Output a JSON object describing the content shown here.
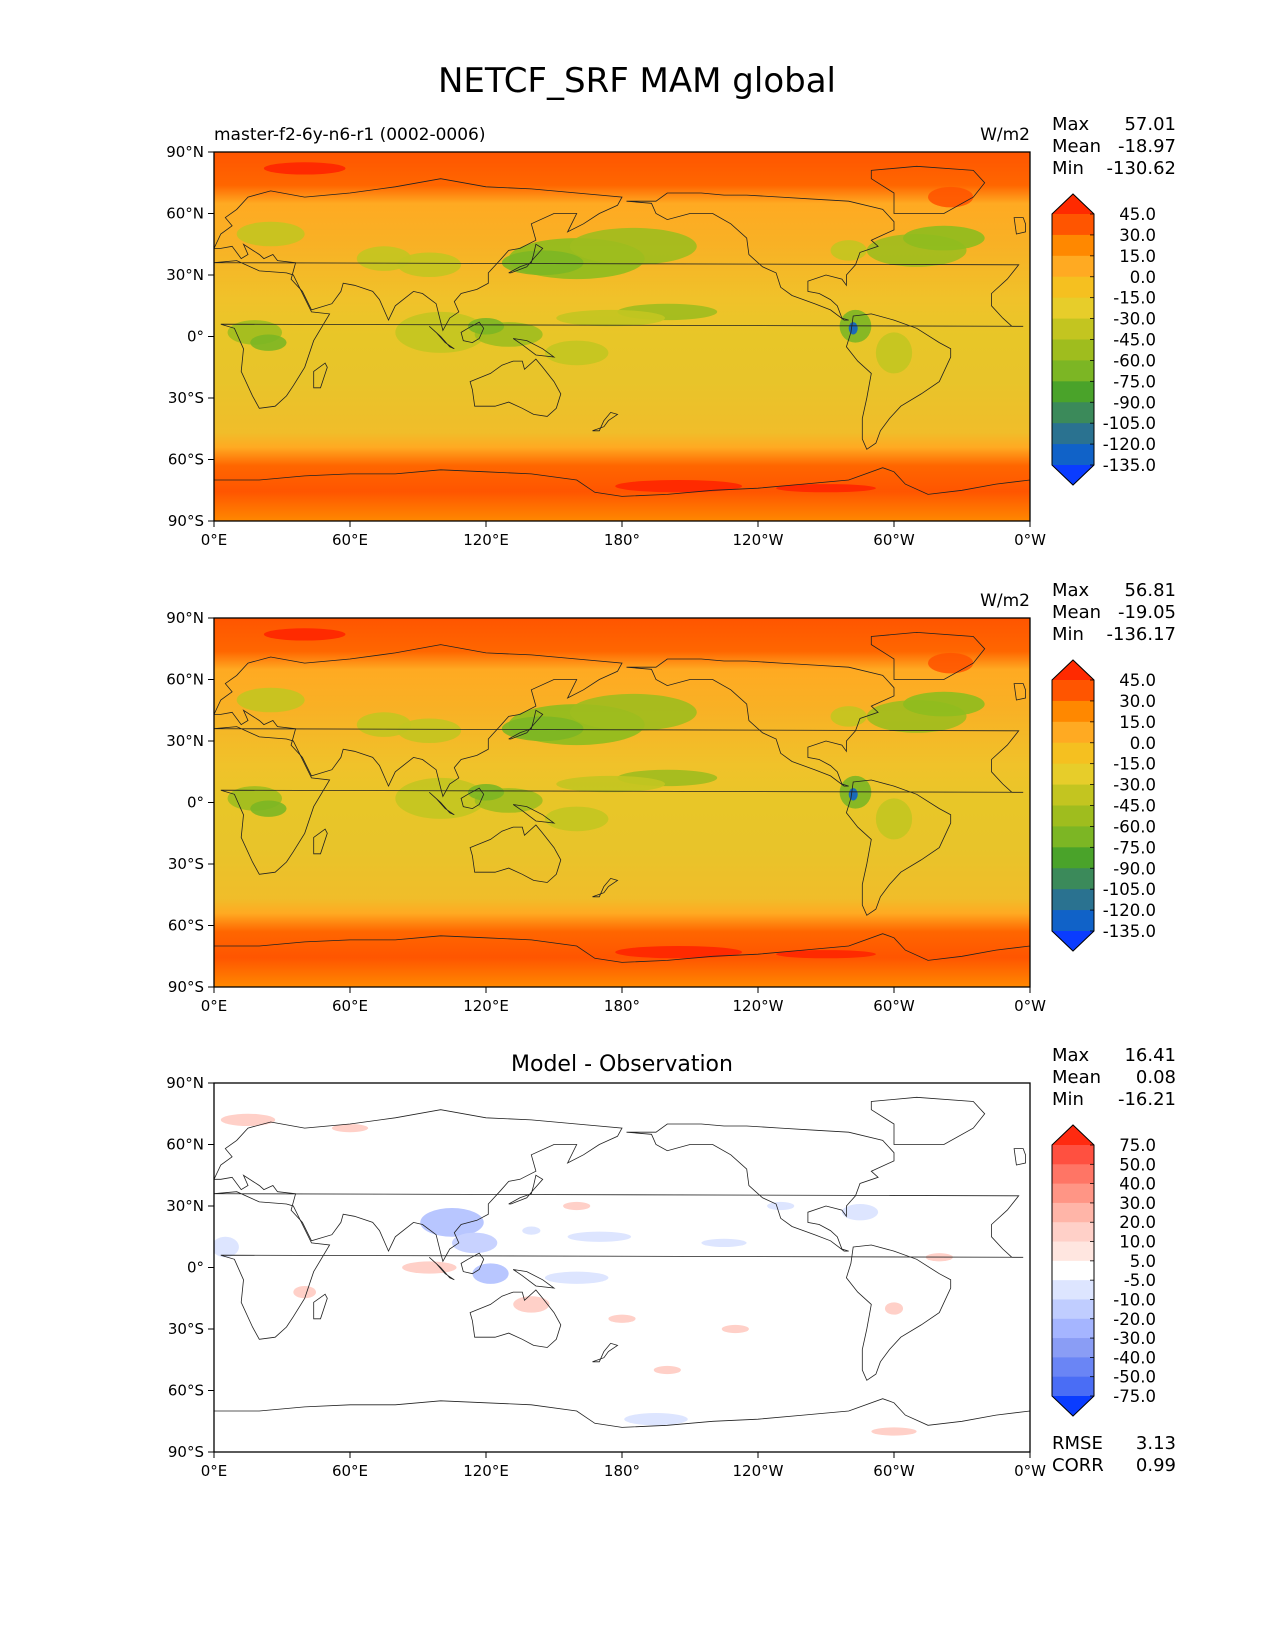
{
  "figure_title": "NETCF_SRF MAM global",
  "chart_data": [
    {
      "type": "heatmap",
      "panel": "test",
      "title": "",
      "left_label": "master-f2-6y-n6-r1 (0002-0006)",
      "units": "W/m2",
      "stats": [
        {
          "label": "Max",
          "value": "57.01"
        },
        {
          "label": "Mean",
          "value": "-18.97"
        },
        {
          "label": "Min",
          "value": "-130.62"
        }
      ],
      "colorbar": {
        "levels": [
          "45.0",
          "30.0",
          "15.0",
          "0.0",
          "-15.0",
          "-30.0",
          "-45.0",
          "-60.0",
          "-75.0",
          "-90.0",
          "-105.0",
          "-120.0",
          "-135.0"
        ],
        "colors": [
          "#ff2a00",
          "#ff5500",
          "#ff8800",
          "#ffaa22",
          "#f5c020",
          "#e7cd2a",
          "#c3c520",
          "#9fbd1e",
          "#7cb624",
          "#4aa32a",
          "#3b8a5a",
          "#2a7290",
          "#1062c8",
          "#0a3cff"
        ]
      },
      "x_ticks": [
        "0°E",
        "60°E",
        "120°E",
        "180°",
        "120°W",
        "60°W",
        "0°W"
      ],
      "y_ticks": [
        "90°N",
        "60°N",
        "30°N",
        "0°",
        "30°S",
        "60°S",
        "90°S"
      ],
      "xlim": [
        0,
        360
      ],
      "ylim": [
        -90,
        90
      ]
    },
    {
      "type": "heatmap",
      "panel": "reference",
      "title": "",
      "left_label": "",
      "units": "W/m2",
      "stats": [
        {
          "label": "Max",
          "value": "56.81"
        },
        {
          "label": "Mean",
          "value": "-19.05"
        },
        {
          "label": "Min",
          "value": "-136.17"
        }
      ],
      "colorbar": {
        "levels": [
          "45.0",
          "30.0",
          "15.0",
          "0.0",
          "-15.0",
          "-30.0",
          "-45.0",
          "-60.0",
          "-75.0",
          "-90.0",
          "-105.0",
          "-120.0",
          "-135.0"
        ],
        "colors": [
          "#ff2a00",
          "#ff5500",
          "#ff8800",
          "#ffaa22",
          "#f5c020",
          "#e7cd2a",
          "#c3c520",
          "#9fbd1e",
          "#7cb624",
          "#4aa32a",
          "#3b8a5a",
          "#2a7290",
          "#1062c8",
          "#0a3cff"
        ]
      },
      "x_ticks": [
        "0°E",
        "60°E",
        "120°E",
        "180°",
        "120°W",
        "60°W",
        "0°W"
      ],
      "y_ticks": [
        "90°N",
        "60°N",
        "30°N",
        "0°",
        "30°S",
        "60°S",
        "90°S"
      ],
      "xlim": [
        0,
        360
      ],
      "ylim": [
        -90,
        90
      ]
    },
    {
      "type": "heatmap",
      "panel": "difference",
      "title": "Model - Observation",
      "left_label": "",
      "units": "",
      "stats": [
        {
          "label": "Max",
          "value": "16.41"
        },
        {
          "label": "Mean",
          "value": "0.08"
        },
        {
          "label": "Min",
          "value": "-16.21"
        }
      ],
      "extra_stats": [
        {
          "label": "RMSE",
          "value": "3.13"
        },
        {
          "label": "CORR",
          "value": "0.99"
        }
      ],
      "colorbar": {
        "levels": [
          "75.0",
          "50.0",
          "40.0",
          "30.0",
          "20.0",
          "10.0",
          "5.0",
          "-5.0",
          "-10.0",
          "-20.0",
          "-30.0",
          "-40.0",
          "-50.0",
          "-75.0"
        ],
        "colors": [
          "#ff2a10",
          "#ff5040",
          "#ff7565",
          "#ff9585",
          "#ffb5a8",
          "#ffd0c8",
          "#ffe6e0",
          "#ffffff",
          "#dde5ff",
          "#c0cdff",
          "#a5b5ff",
          "#8a9df5",
          "#6a85f5",
          "#4a6df5",
          "#0a3cff"
        ]
      },
      "x_ticks": [
        "0°E",
        "60°E",
        "120°E",
        "180°",
        "120°W",
        "60°W",
        "0°W"
      ],
      "y_ticks": [
        "90°N",
        "60°N",
        "30°N",
        "0°",
        "30°S",
        "60°S",
        "90°S"
      ],
      "xlim": [
        0,
        360
      ],
      "ylim": [
        -90,
        90
      ]
    }
  ]
}
